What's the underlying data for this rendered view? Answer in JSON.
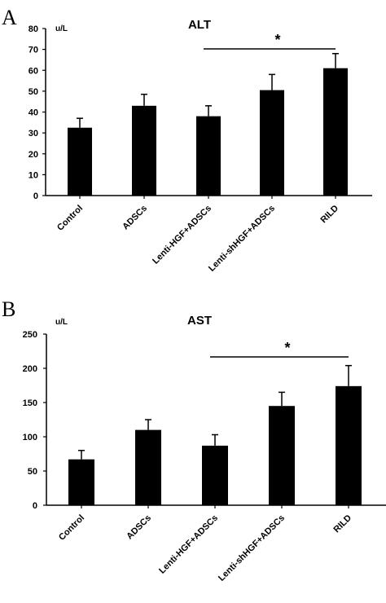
{
  "chart_data": [
    {
      "type": "bar",
      "panel_label": "A",
      "title": "ALT",
      "ylabel": "u/L",
      "categories": [
        "Control",
        "ADSCs",
        "Lenti-HGF+ADSCs",
        "Lenti-shHGF+ADSCs",
        "RILD"
      ],
      "values": [
        32.5,
        43,
        38,
        50.5,
        61
      ],
      "error_bars": [
        4.5,
        5.5,
        5,
        7.5,
        7
      ],
      "ylim": [
        0,
        80
      ],
      "yticks": [
        0,
        10,
        20,
        30,
        40,
        50,
        60,
        70,
        80
      ],
      "significance": {
        "from_category": 2,
        "to_category": 4,
        "label": "*"
      },
      "bar_color": "#000000",
      "grid": false
    },
    {
      "type": "bar",
      "panel_label": "B",
      "title": "AST",
      "ylabel": "u/L",
      "categories": [
        "Control",
        "ADSCs",
        "Lenti-HGF+ADSCs",
        "Lenti-shHGF+ADSCs",
        "RILD"
      ],
      "values": [
        67,
        110,
        87,
        145,
        174
      ],
      "error_bars": [
        13,
        15,
        16,
        20,
        30
      ],
      "ylim": [
        0,
        250
      ],
      "yticks": [
        0,
        50,
        100,
        150,
        200,
        250
      ],
      "significance": {
        "from_category": 2,
        "to_category": 4,
        "label": "*"
      },
      "bar_color": "#000000",
      "grid": false
    }
  ]
}
